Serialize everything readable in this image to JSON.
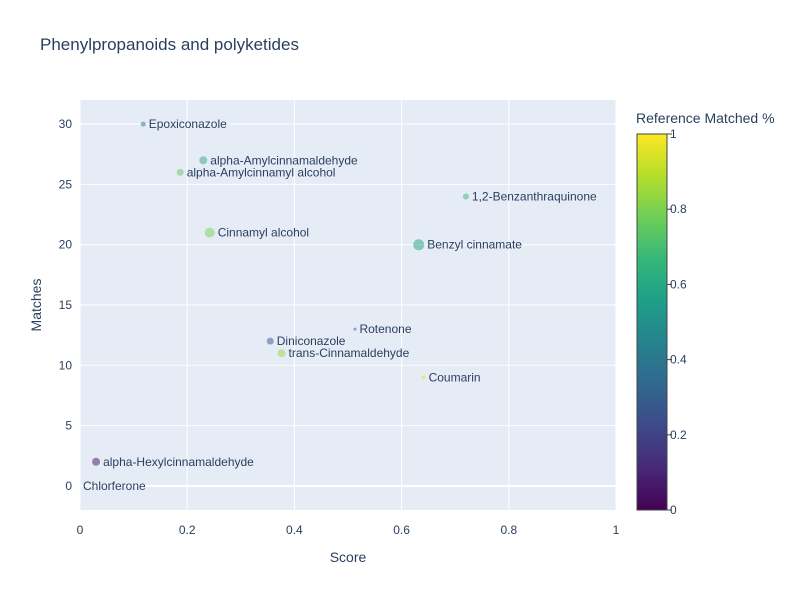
{
  "chart_data": {
    "type": "scatter",
    "title": "Phenylpropanoids and polyketides",
    "xlabel": "Score",
    "ylabel": "Matches",
    "xlim": [
      0,
      1
    ],
    "ylim": [
      -2,
      32
    ],
    "xticks": [
      0,
      0.2,
      0.4,
      0.6,
      0.8,
      1
    ],
    "xtick_labels": [
      "0",
      "0.2",
      "0.4",
      "0.6",
      "0.8",
      "1"
    ],
    "yticks": [
      0,
      5,
      10,
      15,
      20,
      25,
      30
    ],
    "ytick_labels": [
      "0",
      "5",
      "10",
      "15",
      "20",
      "25",
      "30"
    ],
    "grid": true,
    "colorbar": {
      "title": "Reference Matched %",
      "colorscale": "Viridis",
      "range": [
        0,
        1
      ],
      "ticks": [
        0,
        0.2,
        0.4,
        0.6,
        0.8,
        1
      ],
      "tick_labels": [
        "0",
        "0.2",
        "0.4",
        "0.6",
        "0.8",
        "1"
      ],
      "colors": [
        "#440154",
        "#482878",
        "#3e4989",
        "#31688e",
        "#26828e",
        "#1f9e89",
        "#35b779",
        "#6ece58",
        "#b5de2b",
        "#fde725"
      ]
    },
    "points": [
      {
        "label": "Epoxiconazole",
        "x": 0.118,
        "y": 30,
        "color_value": 0.38,
        "size": 5
      },
      {
        "label": "alpha-Amylcinnamaldehyde",
        "x": 0.23,
        "y": 27,
        "color_value": 0.62,
        "size": 8
      },
      {
        "label": "alpha-Amylcinnamyl alcohol",
        "x": 0.187,
        "y": 26,
        "color_value": 0.75,
        "size": 7
      },
      {
        "label": "1,2-Benzanthraquinone",
        "x": 0.72,
        "y": 24,
        "color_value": 0.66,
        "size": 6
      },
      {
        "label": "Cinnamyl alcohol",
        "x": 0.242,
        "y": 21,
        "color_value": 0.8,
        "size": 10
      },
      {
        "label": "Benzyl cinnamate",
        "x": 0.632,
        "y": 20,
        "color_value": 0.57,
        "size": 11
      },
      {
        "label": "Rotenone",
        "x": 0.513,
        "y": 13,
        "color_value": 0.25,
        "size": 3
      },
      {
        "label": "Diniconazole",
        "x": 0.355,
        "y": 12,
        "color_value": 0.25,
        "size": 7
      },
      {
        "label": "trans-Cinnamaldehyde",
        "x": 0.376,
        "y": 11,
        "color_value": 0.85,
        "size": 8
      },
      {
        "label": "Coumarin",
        "x": 0.641,
        "y": 9,
        "color_value": 0.95,
        "size": 4
      },
      {
        "label": "alpha-Hexylcinnamaldehyde",
        "x": 0.03,
        "y": 2,
        "color_value": 0.05,
        "size": 8
      },
      {
        "label": "Chlorferone",
        "x": 0.0,
        "y": 0,
        "color_value": 0.5,
        "size": 0
      }
    ]
  }
}
